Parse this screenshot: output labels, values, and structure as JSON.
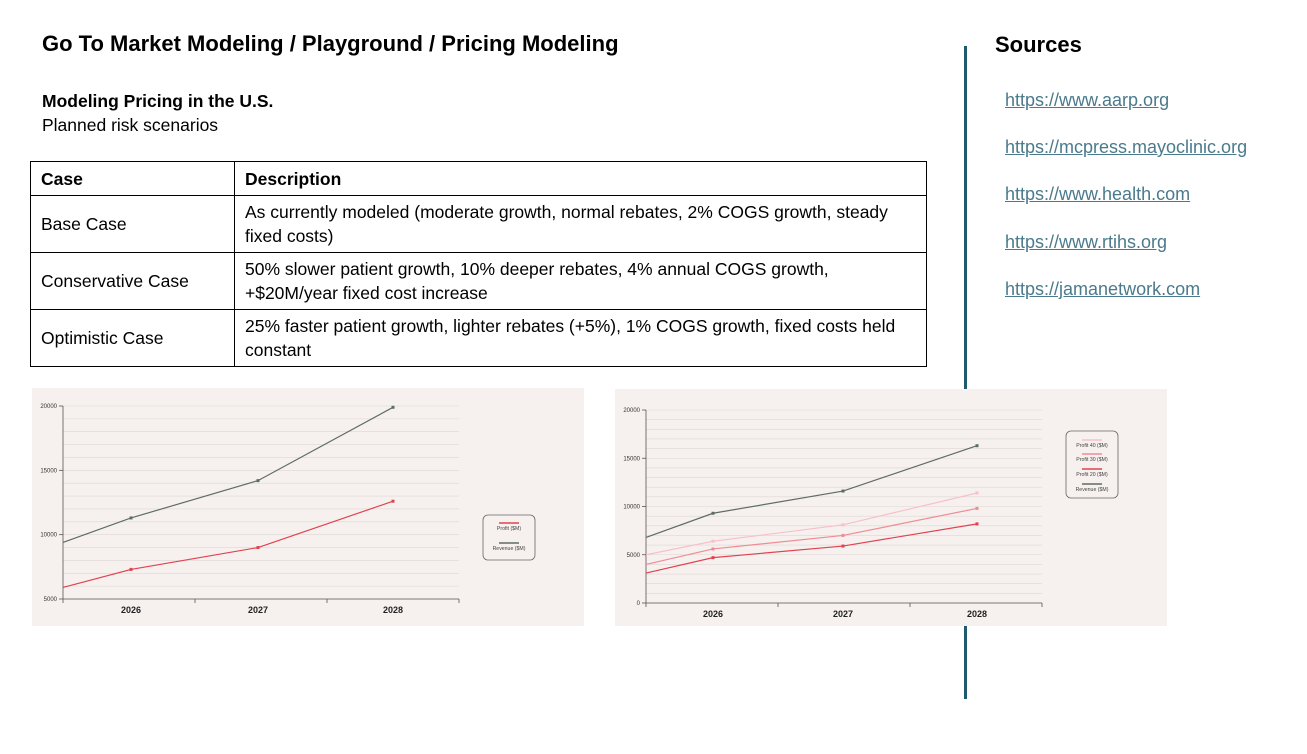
{
  "header": {
    "breadcrumb": "Go To Market Modeling / Playground / Pricing Modeling",
    "subtitle": "Modeling Pricing in the U.S.",
    "subsubtitle": "Planned risk scenarios"
  },
  "table": {
    "headers": [
      "Case",
      "Description"
    ],
    "rows": [
      {
        "case": "Base Case",
        "description": "As currently modeled (moderate growth, normal rebates, 2% COGS growth, steady fixed costs)"
      },
      {
        "case": "Conservative Case",
        "description": "50% slower patient growth, 10% deeper rebates, 4% annual COGS growth, +$20M/year fixed cost increase"
      },
      {
        "case": "Optimistic Case",
        "description": "25% faster patient growth, lighter rebates (+5%), 1% COGS growth, fixed costs held constant"
      }
    ]
  },
  "sources": {
    "title": "Sources",
    "links": [
      "https://www.aarp.org",
      "https://mcpress.mayoclinic.org",
      "https://www.health.com",
      "https://www.rtihs.org",
      "https://jamanetwork.com"
    ]
  },
  "colors": {
    "divider": "#1d5a6e",
    "link": "#4a7a8c",
    "chart_bg": "#f6f1ef"
  },
  "chart_data": [
    {
      "type": "line",
      "x": [
        "2026",
        "2027",
        "2028"
      ],
      "ylim": [
        5000,
        20000
      ],
      "yticks": [
        "5000",
        "10000",
        "15000",
        "20000"
      ],
      "grid": true,
      "legend_position": "right",
      "series": [
        {
          "name": "Profit ($M)",
          "color": "#e0434f",
          "values": [
            7300,
            9000,
            12600
          ],
          "start_value": 5900
        },
        {
          "name": "Revenue ($M)",
          "color": "#5e6d62",
          "values": [
            11300,
            14200,
            19900
          ],
          "start_value": 9400
        }
      ]
    },
    {
      "type": "line",
      "x": [
        "2026",
        "2027",
        "2028"
      ],
      "ylim": [
        0,
        20000
      ],
      "yticks": [
        "0",
        "5000",
        "10000",
        "15000",
        "20000"
      ],
      "grid": true,
      "legend_position": "top-right",
      "series": [
        {
          "name": "Profit 40 ($M)",
          "color": "#f6c1c8",
          "values": [
            6400,
            8100,
            11400
          ],
          "start_value": 5000
        },
        {
          "name": "Profit 30 ($M)",
          "color": "#ef8c93",
          "values": [
            5600,
            7000,
            9800
          ],
          "start_value": 4000
        },
        {
          "name": "Profit 20 ($M)",
          "color": "#e0434f",
          "values": [
            4700,
            5900,
            8200
          ],
          "start_value": 3100
        },
        {
          "name": "Revenue ($M)",
          "color": "#5e6d62",
          "values": [
            9300,
            11600,
            16300
          ],
          "start_value": 6800
        }
      ]
    }
  ]
}
